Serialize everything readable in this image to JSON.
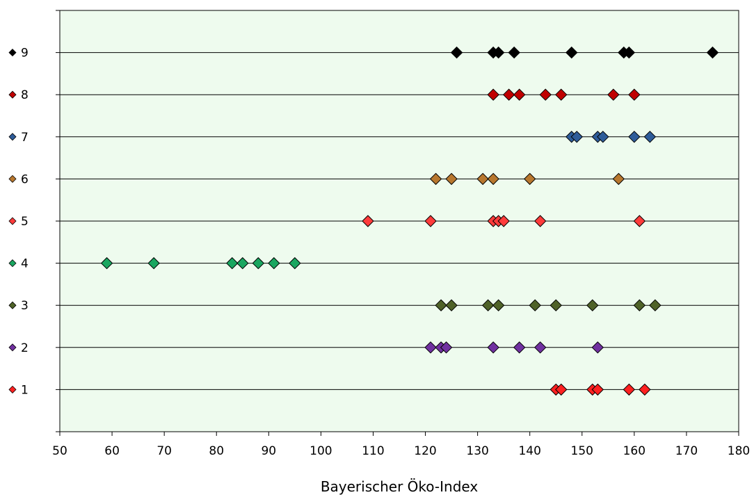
{
  "chart_data": {
    "type": "scatter",
    "title": "",
    "xlabel": "Bayerischer Öko-Index",
    "ylabel": "",
    "xlim": [
      50,
      180
    ],
    "x_ticks": [
      "50",
      "60",
      "70",
      "80",
      "90",
      "100",
      "110",
      "120",
      "130",
      "140",
      "150",
      "160",
      "170",
      "180"
    ],
    "ylim": [
      0,
      10
    ],
    "grid": "horizontal lines at each category",
    "plot_background": "#eefbee",
    "marker": "diamond",
    "legend_placement": "left, aligned with rows",
    "series": [
      {
        "name": "1",
        "y": 1,
        "color": "#ff2020",
        "x": [
          145,
          146,
          152,
          153,
          159,
          162
        ]
      },
      {
        "name": "2",
        "y": 2,
        "color": "#7030a0",
        "x": [
          121,
          123,
          124,
          133,
          138,
          142,
          153
        ]
      },
      {
        "name": "3",
        "y": 3,
        "color": "#4f6228",
        "x": [
          123,
          125,
          132,
          134,
          141,
          145,
          152,
          161,
          164
        ]
      },
      {
        "name": "4",
        "y": 4,
        "color": "#1aa660",
        "x": [
          59,
          68,
          83,
          85,
          88,
          91,
          95
        ]
      },
      {
        "name": "5",
        "y": 5,
        "color": "#ff3b3b",
        "x": [
          109,
          121,
          133,
          134,
          135,
          142,
          161
        ]
      },
      {
        "name": "6",
        "y": 6,
        "color": "#b8772e",
        "x": [
          122,
          125,
          131,
          133,
          140,
          157
        ]
      },
      {
        "name": "7",
        "y": 7,
        "color": "#2e5c99",
        "x": [
          148,
          149,
          153,
          154,
          160,
          163
        ]
      },
      {
        "name": "8",
        "y": 8,
        "color": "#c00000",
        "x": [
          133,
          136,
          138,
          143,
          146,
          156,
          160
        ]
      },
      {
        "name": "9",
        "y": 9,
        "color": "#000000",
        "x": [
          126,
          133,
          134,
          137,
          148,
          158,
          159,
          175
        ]
      }
    ]
  }
}
